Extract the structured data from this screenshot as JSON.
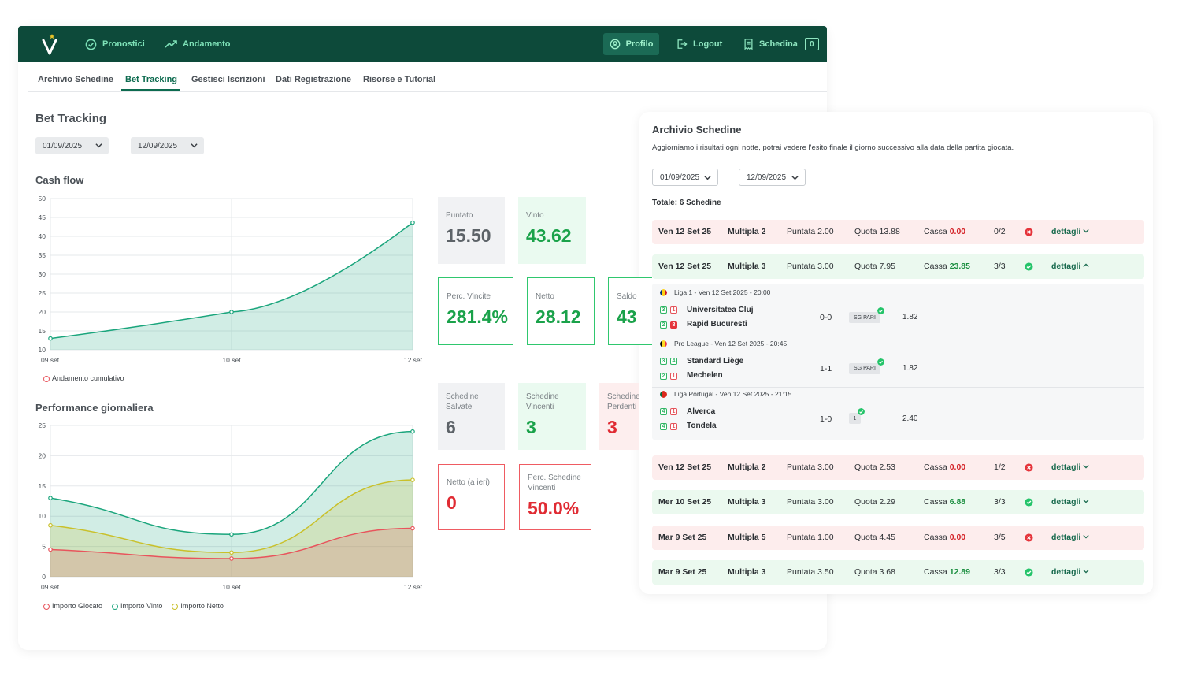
{
  "nav": {
    "items": [
      "Pronostici",
      "Andamento"
    ],
    "profile": "Profilo",
    "logout": "Logout",
    "schedina": "Schedina",
    "schedina_count": "0"
  },
  "tabs": [
    "Archivio Schedine",
    "Bet Tracking",
    "Gestisci Iscrizioni",
    "Dati Registrazione",
    "Risorse e Tutorial"
  ],
  "tracking": {
    "title": "Bet Tracking",
    "date_from": "01/09/2025",
    "date_to": "12/09/2025"
  },
  "cards_top": [
    {
      "label": "Puntato",
      "value": "15.50"
    },
    {
      "label": "Vinto",
      "value": "43.62"
    }
  ],
  "cards_mid": [
    {
      "label": "Perc. Vincite",
      "value": "281.4%"
    },
    {
      "label": "Netto",
      "value": "28.12"
    },
    {
      "label": "Saldo",
      "value": "43"
    }
  ],
  "cards_count": [
    {
      "label": "Schedine Salvate",
      "value": "6"
    },
    {
      "label": "Schedine Vincenti",
      "value": "3"
    },
    {
      "label": "Schedine Perdenti",
      "value": "3"
    }
  ],
  "cards_bottom": [
    {
      "label": "Netto (a ieri)",
      "value": "0"
    },
    {
      "label": "Perc. Schedine Vincenti",
      "value": "50.0%"
    }
  ],
  "chart_data": [
    {
      "type": "area",
      "title": "Cash flow",
      "x": [
        "09 set",
        "10 set",
        "12 set"
      ],
      "series": [
        {
          "name": "Andamento cumulativo",
          "values": [
            13,
            20,
            43.62
          ],
          "color": "#1aa57c"
        }
      ],
      "ylim": [
        10,
        50
      ],
      "yticks": [
        10,
        15,
        20,
        25,
        30,
        35,
        40,
        45,
        50
      ],
      "grid": true,
      "legend": "bottom-left"
    },
    {
      "type": "area",
      "title": "Performance giornaliera",
      "x": [
        "09 set",
        "10 set",
        "12 set"
      ],
      "series": [
        {
          "name": "Importo Giocato",
          "values": [
            4.5,
            3,
            8
          ],
          "color": "#e8545c"
        },
        {
          "name": "Importo Vinto",
          "values": [
            13,
            7,
            24
          ],
          "color": "#1aa57c"
        },
        {
          "name": "Importo Netto",
          "values": [
            8.5,
            4,
            16
          ],
          "color": "#c9c02a"
        }
      ],
      "ylim": [
        0,
        25
      ],
      "yticks": [
        0,
        5,
        10,
        15,
        20,
        25
      ],
      "grid": true,
      "legend": "bottom-left"
    }
  ],
  "archive": {
    "title": "Archivio Schedine",
    "description": "Aggiorniamo i risultati ogni notte, potrai vedere l'esito finale il giorno successivo alla data della partita giocata.",
    "date_from": "01/09/2025",
    "date_to": "12/09/2025",
    "total": "Totale: 6 Schedine",
    "details_label": "dettagli",
    "rows": [
      {
        "date": "Ven 12 Set 25",
        "type": "Multipla 2",
        "puntata_label": "Puntata",
        "puntata": "2.00",
        "quota_label": "Quota",
        "quota": "13.88",
        "cassa_label": "Cassa",
        "cassa": "0.00",
        "result": "0/2",
        "status": "lost"
      },
      {
        "date": "Ven 12 Set 25",
        "type": "Multipla 3",
        "puntata_label": "Puntata",
        "puntata": "3.00",
        "quota_label": "Quota",
        "quota": "7.95",
        "cassa_label": "Cassa",
        "cassa": "23.85",
        "result": "3/3",
        "status": "won"
      },
      {
        "date": "Ven 12 Set 25",
        "type": "Multipla 2",
        "puntata_label": "Puntata",
        "puntata": "3.00",
        "quota_label": "Quota",
        "quota": "2.53",
        "cassa_label": "Cassa",
        "cassa": "0.00",
        "result": "1/2",
        "status": "lost"
      },
      {
        "date": "Mer 10 Set 25",
        "type": "Multipla 3",
        "puntata_label": "Puntata",
        "puntata": "3.00",
        "quota_label": "Quota",
        "quota": "2.29",
        "cassa_label": "Cassa",
        "cassa": "6.88",
        "result": "3/3",
        "status": "won"
      },
      {
        "date": "Mar 9 Set 25",
        "type": "Multipla 5",
        "puntata_label": "Puntata",
        "puntata": "1.00",
        "quota_label": "Quota",
        "quota": "4.45",
        "cassa_label": "Cassa",
        "cassa": "0.00",
        "result": "3/5",
        "status": "lost"
      },
      {
        "date": "Mar 9 Set 25",
        "type": "Multipla 3",
        "puntata_label": "Puntata",
        "puntata": "3.50",
        "quota_label": "Quota",
        "quota": "3.68",
        "cassa_label": "Cassa",
        "cassa": "12.89",
        "result": "3/3",
        "status": "won"
      }
    ],
    "matches": [
      {
        "league": "Liga 1 - Ven 12 Set 2025 - 20:00",
        "home": "Universitatea Cluj",
        "away": "Rapid Bucuresti",
        "home_badges": [
          "3",
          "1"
        ],
        "away_badges": [
          "2",
          "8"
        ],
        "score": "0-0",
        "pick": "SG PARI",
        "odd": "1.82",
        "flag": "romania"
      },
      {
        "league": "Pro League - Ven 12 Set 2025 - 20:45",
        "home": "Standard Liège",
        "away": "Mechelen",
        "home_badges": [
          "3",
          "4"
        ],
        "away_badges": [
          "2",
          "1"
        ],
        "score": "1-1",
        "pick": "SG PARI",
        "odd": "1.82",
        "flag": "belgium"
      },
      {
        "league": "Liga Portugal - Ven 12 Set 2025 - 21:15",
        "home": "Alverca",
        "away": "Tondela",
        "home_badges": [
          "4",
          "1"
        ],
        "away_badges": [
          "4",
          "1"
        ],
        "score": "1-0",
        "pick": "1",
        "odd": "2.40",
        "flag": "portugal"
      }
    ]
  },
  "icons": [
    "check-circle-icon",
    "trend-up-icon",
    "user-icon",
    "logout-icon",
    "receipt-icon",
    "chevron-down-icon",
    "chevron-up-icon",
    "x-circle-icon",
    "check-icon"
  ]
}
